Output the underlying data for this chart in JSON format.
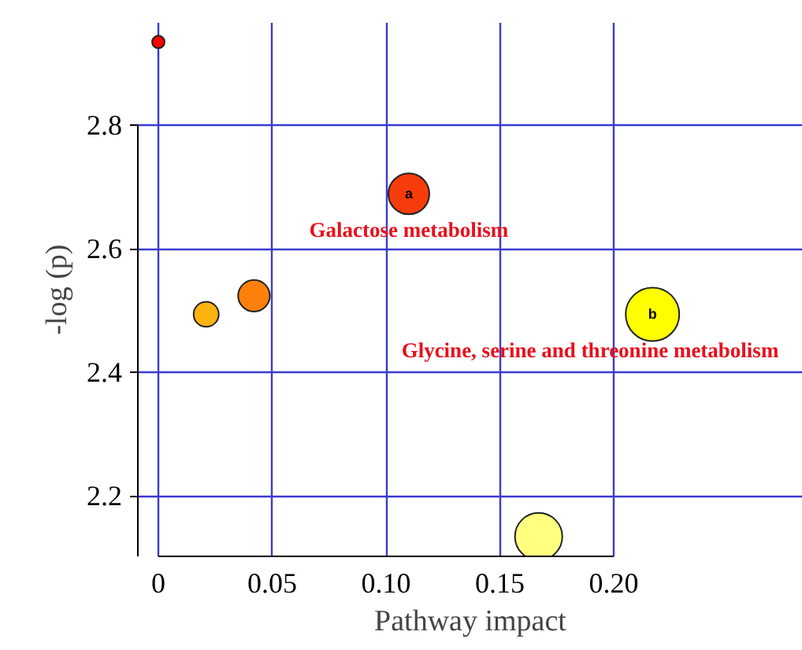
{
  "chart_data": {
    "type": "bubble",
    "xlabel": "Pathway impact",
    "ylabel": "-log (p)",
    "x": [
      0,
      0.11,
      0.021,
      0.042,
      0.217,
      0.167
    ],
    "values": [
      2.935,
      2.689,
      2.494,
      2.524,
      2.494,
      2.134
    ],
    "sizes": [
      0.055,
      0.585,
      0.22,
      0.35,
      1,
      0.78
    ],
    "colors": [
      "#ff0000",
      "#f63c0a",
      "#ffb30f",
      "#ff800a",
      "#ffff00",
      "#ffff80"
    ],
    "xlim": [
      -0.009,
      0.283
    ],
    "ylim": [
      2.102,
      2.966
    ],
    "xticks": [
      0,
      0.05,
      {
        "value": 0.1,
        "label": "0.10"
      },
      0.15,
      {
        "value": 0.2,
        "label": "0.20"
      }
    ],
    "yticks": [
      2.2,
      2.4,
      2.6,
      2.8
    ],
    "grid": true,
    "annotations": [
      {
        "text": "a",
        "x": 0.11,
        "y": 2.689
      },
      "Galactose metabolism",
      {
        "text": "b",
        "x": 0.217,
        "y": 2.494
      },
      "Glycine, serine and threonine metabolism"
    ]
  }
}
